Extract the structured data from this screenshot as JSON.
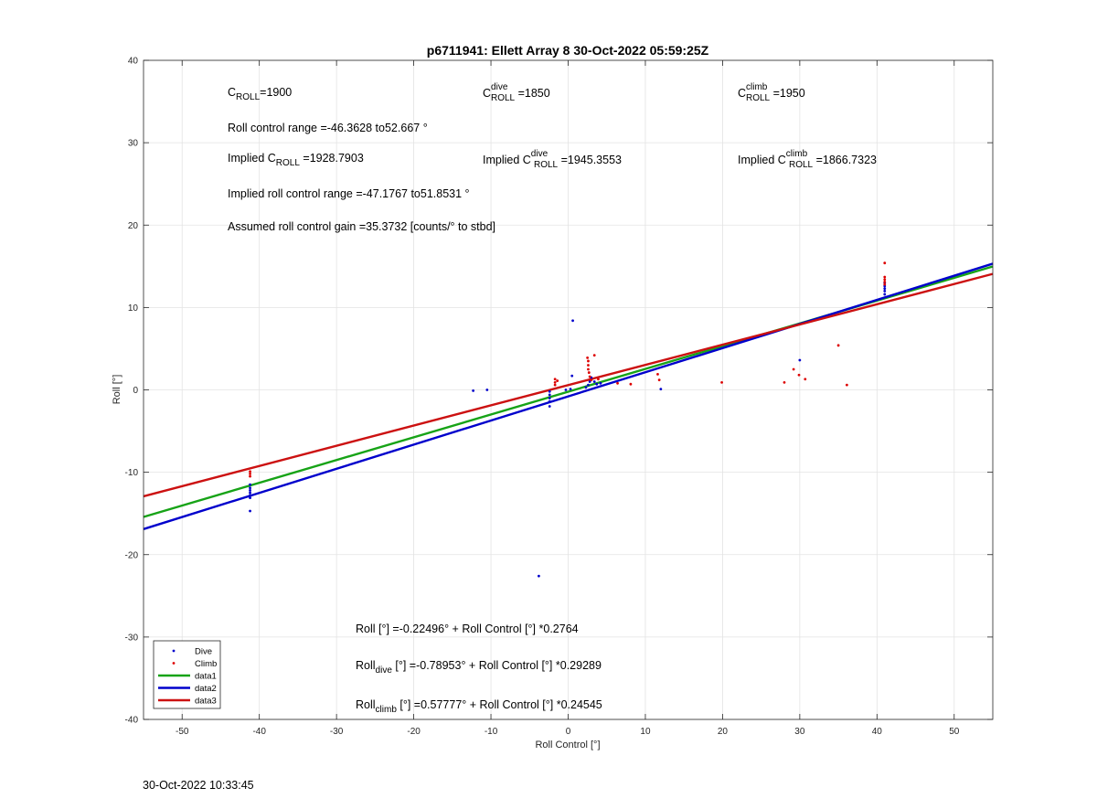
{
  "chart_data": {
    "type": "scatter",
    "title": "p6711941: Ellett Array 8 30-Oct-2022 05:59:25Z",
    "xlabel": "Roll Control [°]",
    "ylabel": "Roll [°]",
    "xlim": [
      -55,
      55
    ],
    "ylim": [
      -40,
      40
    ],
    "xticks": [
      -50,
      -40,
      -30,
      -20,
      -10,
      0,
      10,
      20,
      30,
      40,
      50
    ],
    "yticks": [
      -40,
      -30,
      -20,
      -10,
      0,
      10,
      20,
      30,
      40
    ],
    "grid": true,
    "legend_position": "bottom-left",
    "series": [
      {
        "name": "Dive",
        "kind": "points",
        "color": "#0000cc",
        "points": [
          [
            -41.2,
            -11.5
          ],
          [
            -41.2,
            -11.9
          ],
          [
            -41.2,
            -12.2
          ],
          [
            -41.2,
            -12.5
          ],
          [
            -41.2,
            -12.8
          ],
          [
            -41.2,
            -13.1
          ],
          [
            -41.2,
            -14.7
          ],
          [
            -12.3,
            -0.1
          ],
          [
            -10.5,
            0.0
          ],
          [
            -3.8,
            -22.6
          ],
          [
            -2.4,
            -0.2
          ],
          [
            -2.4,
            -0.6
          ],
          [
            -2.4,
            -1.0
          ],
          [
            -2.4,
            -1.4
          ],
          [
            -2.4,
            -2.0
          ],
          [
            -0.3,
            0.0
          ],
          [
            0.3,
            0.1
          ],
          [
            0.6,
            8.4
          ],
          [
            0.5,
            1.7
          ],
          [
            2.3,
            0.3
          ],
          [
            2.6,
            0.6
          ],
          [
            2.8,
            1.0
          ],
          [
            3.0,
            1.5
          ],
          [
            3.4,
            1.0
          ],
          [
            3.7,
            0.7
          ],
          [
            4.2,
            0.8
          ],
          [
            12.0,
            0.1
          ],
          [
            30.0,
            3.6
          ],
          [
            41.0,
            11.6
          ],
          [
            41.0,
            12.0
          ],
          [
            41.0,
            12.3
          ],
          [
            41.0,
            12.6
          ],
          [
            41.0,
            13.0
          ]
        ]
      },
      {
        "name": "Climb",
        "kind": "points",
        "color": "#dd0000",
        "points": [
          [
            -41.2,
            -9.9
          ],
          [
            -41.2,
            -10.2
          ],
          [
            -41.2,
            -10.5
          ],
          [
            -1.7,
            0.6
          ],
          [
            -1.7,
            0.9
          ],
          [
            -1.7,
            1.3
          ],
          [
            -1.4,
            1.1
          ],
          [
            2.5,
            3.9
          ],
          [
            2.6,
            3.5
          ],
          [
            2.6,
            3.0
          ],
          [
            2.6,
            2.5
          ],
          [
            2.7,
            2.1
          ],
          [
            2.8,
            1.6
          ],
          [
            3.0,
            1.2
          ],
          [
            3.4,
            4.2
          ],
          [
            3.9,
            1.3
          ],
          [
            6.4,
            0.8
          ],
          [
            8.1,
            0.7
          ],
          [
            11.6,
            1.9
          ],
          [
            11.8,
            1.2
          ],
          [
            19.9,
            0.9
          ],
          [
            28.0,
            0.9
          ],
          [
            29.2,
            2.5
          ],
          [
            29.9,
            1.8
          ],
          [
            30.7,
            1.3
          ],
          [
            35.0,
            5.4
          ],
          [
            36.1,
            0.6
          ],
          [
            41.0,
            15.4
          ],
          [
            41.0,
            13.7
          ],
          [
            41.0,
            13.4
          ],
          [
            41.0,
            13.1
          ],
          [
            41.0,
            12.8
          ]
        ]
      },
      {
        "name": "data1",
        "kind": "line",
        "color": "#17a317",
        "intercept": -0.22496,
        "slope": 0.2764
      },
      {
        "name": "data2",
        "kind": "line",
        "color": "#0000cc",
        "intercept": -0.78953,
        "slope": 0.29289
      },
      {
        "name": "data3",
        "kind": "line",
        "color": "#cc1111",
        "intercept": 0.57777,
        "slope": 0.24545
      }
    ],
    "annotations": {
      "c_roll": {
        "main": "C",
        "sub": "ROLL",
        "value": "=1900"
      },
      "c_roll_dive": {
        "main": "C",
        "sup": "dive",
        "sub": "ROLL",
        "value": " =1850"
      },
      "c_roll_climb": {
        "main": "C",
        "sup": "climb",
        "sub": "ROLL",
        "value": " =1950"
      },
      "roll_control_range": "Roll control range =-46.3628 to52.667 °",
      "implied_c_roll": {
        "prefix": "Implied C",
        "sub": "ROLL",
        "value": " =1928.7903"
      },
      "implied_c_roll_dive": {
        "prefix": "Implied C",
        "sup": "dive",
        "sub": "ROLL",
        "value": " =1945.3553"
      },
      "implied_c_roll_climb": {
        "prefix": "Implied C",
        "sup": "climb",
        "sub": "ROLL",
        "value": " =1866.7323"
      },
      "implied_roll_range": "Implied roll control range =-47.1767 to51.8531 °",
      "assumed_gain": "Assumed roll control gain =35.3732 [counts/° to stbd]",
      "fit_all": "Roll [°] =-0.22496° + Roll Control [°] *0.2764",
      "fit_dive": {
        "prefix": "Roll",
        "sub": "dive",
        "rest": " [°] =-0.78953° + Roll Control [°] *0.29289"
      },
      "fit_climb": {
        "prefix": "Roll",
        "sub": "climb",
        "rest": " [°] =0.57777° + Roll Control [°] *0.24545"
      }
    }
  },
  "timestamp": "30-Oct-2022 10:33:45"
}
